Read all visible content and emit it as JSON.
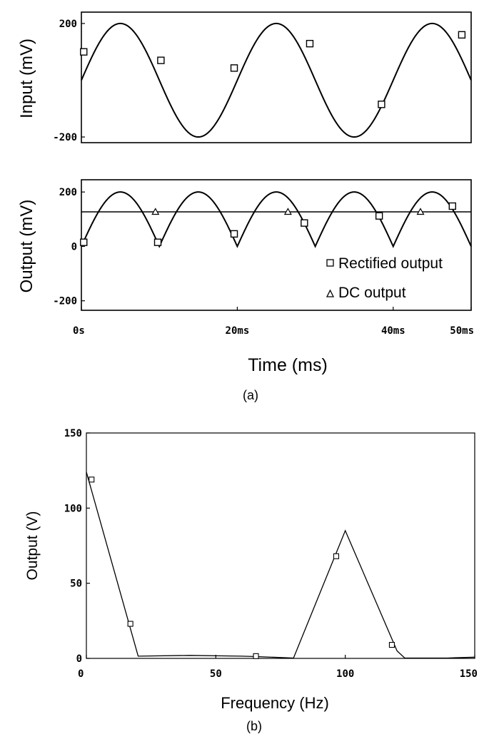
{
  "chart_data": [
    {
      "id": "input",
      "type": "line",
      "ylabel": "Input (mV)",
      "xlim": [
        0,
        50
      ],
      "ylim": [
        -220,
        240
      ],
      "yticks": [
        {
          "v": 200,
          "label": "200"
        },
        {
          "v": -200,
          "label": "-200"
        }
      ],
      "grid": false,
      "series": [
        {
          "function": "sine",
          "amplitude_mV": 200,
          "frequency_Hz": 50,
          "marker": "square",
          "marker_points": [
            {
              "x": 0.3,
              "y": 100
            },
            {
              "x": 10.2,
              "y": 70
            },
            {
              "x": 19.6,
              "y": 43
            },
            {
              "x": 29.3,
              "y": 129
            },
            {
              "x": 38.5,
              "y": -85
            },
            {
              "x": 48.8,
              "y": 160
            }
          ]
        }
      ]
    },
    {
      "id": "output",
      "type": "line",
      "ylabel": "Output (mV)",
      "xlabel": "Time (ms)",
      "xlim": [
        0,
        50
      ],
      "ylim": [
        -235,
        245
      ],
      "xticks": [
        {
          "v": 0,
          "label": "0s"
        },
        {
          "v": 20,
          "label": "20ms"
        },
        {
          "v": 40,
          "label": "40ms"
        },
        {
          "v": 50,
          "label": "50ms"
        }
      ],
      "yticks": [
        {
          "v": 200,
          "label": "200"
        },
        {
          "v": 0,
          "label": "0"
        },
        {
          "v": -200,
          "label": "-200"
        }
      ],
      "grid": false,
      "legend_position": "bottom-right",
      "series": [
        {
          "name": "Rectified output",
          "function": "abs_sine",
          "amplitude_mV": 200,
          "frequency_Hz": 50,
          "marker": "square",
          "marker_points": [
            {
              "x": 0.3,
              "y": 15
            },
            {
              "x": 9.8,
              "y": 15
            },
            {
              "x": 19.6,
              "y": 46
            },
            {
              "x": 28.6,
              "y": 86
            },
            {
              "x": 38.2,
              "y": 112
            },
            {
              "x": 47.6,
              "y": 148
            }
          ]
        },
        {
          "name": "DC output",
          "function": "constant",
          "value_mV": 127,
          "marker": "triangle",
          "marker_points": [
            {
              "x": 9.5,
              "y": 127
            },
            {
              "x": 26.5,
              "y": 127
            },
            {
              "x": 43.5,
              "y": 127
            }
          ]
        }
      ],
      "caption": "(a)"
    },
    {
      "id": "spectrum",
      "type": "line",
      "xlabel": "Frequency (Hz)",
      "ylabel": "Output (V)",
      "xlim": [
        0,
        150
      ],
      "ylim": [
        0,
        150
      ],
      "xticks": [
        {
          "v": 0,
          "label": "0"
        },
        {
          "v": 50,
          "label": "50"
        },
        {
          "v": 100,
          "label": "100"
        },
        {
          "v": 150,
          "label": "150"
        }
      ],
      "yticks": [
        {
          "v": 0,
          "label": "0"
        },
        {
          "v": 50,
          "label": "50"
        },
        {
          "v": 100,
          "label": "100"
        },
        {
          "v": 150,
          "label": "150"
        }
      ],
      "grid": false,
      "series": [
        {
          "marker": "square",
          "x": [
            0,
            20,
            40,
            60,
            66,
            80,
            100,
            120,
            123,
            140,
            150
          ],
          "y": [
            124,
            1.5,
            2,
            1.5,
            1.2,
            0.2,
            85,
            5,
            0.2,
            0.3,
            0.8
          ],
          "marker_points": [
            {
              "x": 2,
              "y": 119
            },
            {
              "x": 17,
              "y": 23
            },
            {
              "x": 65.5,
              "y": 1.5
            },
            {
              "x": 96.5,
              "y": 68
            },
            {
              "x": 118,
              "y": 9
            }
          ]
        }
      ],
      "caption": "(b)"
    }
  ]
}
